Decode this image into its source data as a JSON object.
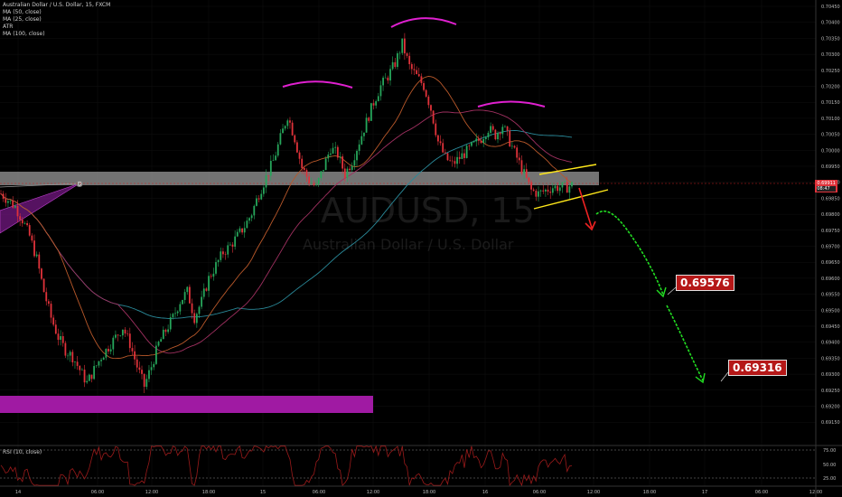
{
  "chart_data": {
    "type": "candlestick",
    "symbol_title": "Australian Dollar / U.S. Dollar, 15, FXCM",
    "watermark_symbol": "AUDUSD, 15",
    "watermark_name": "Australian Dollar / U.S. Dollar",
    "indicators": [
      "MA (50, close)",
      "MA (25, close)",
      "ATR",
      "MA (100, close)"
    ],
    "rsi_label": "RSI (10, close)",
    "y_ticks": [
      "0.70450",
      "0.70400",
      "0.70350",
      "0.70300",
      "0.70250",
      "0.70200",
      "0.70150",
      "0.70100",
      "0.70050",
      "0.70000",
      "0.69950",
      "0.69900",
      "0.69850",
      "0.69800",
      "0.69750",
      "0.69700",
      "0.69650",
      "0.69600",
      "0.69550",
      "0.69500",
      "0.69450",
      "0.69400",
      "0.69350",
      "0.69300",
      "0.69250",
      "0.69200",
      "0.69150"
    ],
    "rsi_ticks": [
      "75.00",
      "50.00",
      "25.00"
    ],
    "x_ticks": [
      "14",
      "06:00",
      "12:00",
      "18:00",
      "15",
      "06:00",
      "12:00",
      "18:00",
      "16",
      "06:00",
      "12:00",
      "18:00",
      "17",
      "06:00",
      "12:00"
    ],
    "ylim": [
      0.6913,
      0.7046
    ],
    "current_price": "0.69911",
    "countdown": "08:47",
    "marker": "D",
    "targets": [
      "0.69576",
      "0.69316"
    ],
    "close_path": [
      [
        0,
        0.6988
      ],
      [
        3,
        0.6986
      ],
      [
        6,
        0.6984
      ],
      [
        9,
        0.698
      ],
      [
        12,
        0.6975
      ],
      [
        15,
        0.6968
      ],
      [
        18,
        0.6958
      ],
      [
        21,
        0.695
      ],
      [
        24,
        0.6944
      ],
      [
        27,
        0.694
      ],
      [
        30,
        0.6938
      ],
      [
        33,
        0.6934
      ],
      [
        36,
        0.693
      ],
      [
        39,
        0.6934
      ],
      [
        42,
        0.6938
      ],
      [
        45,
        0.6941
      ],
      [
        48,
        0.6944
      ],
      [
        51,
        0.6947
      ],
      [
        54,
        0.6942
      ],
      [
        57,
        0.6935
      ],
      [
        60,
        0.6929
      ],
      [
        63,
        0.6935
      ],
      [
        66,
        0.6942
      ],
      [
        69,
        0.6946
      ],
      [
        72,
        0.695
      ],
      [
        75,
        0.6955
      ],
      [
        78,
        0.6958
      ],
      [
        81,
        0.695
      ],
      [
        84,
        0.6955
      ],
      [
        87,
        0.6962
      ],
      [
        90,
        0.6966
      ],
      [
        93,
        0.697
      ],
      [
        96,
        0.6972
      ],
      [
        99,
        0.6975
      ],
      [
        102,
        0.6978
      ],
      [
        105,
        0.6982
      ],
      [
        108,
        0.6988
      ],
      [
        111,
        0.6993
      ],
      [
        114,
        0.6998
      ],
      [
        117,
        0.7005
      ],
      [
        120,
        0.7012
      ],
      [
        123,
        0.7005
      ],
      [
        126,
        0.6996
      ],
      [
        129,
        0.6992
      ],
      [
        132,
        0.699
      ],
      [
        135,
        0.6996
      ],
      [
        138,
        0.7002
      ],
      [
        141,
        0.7
      ],
      [
        144,
        0.6994
      ],
      [
        147,
        0.6998
      ],
      [
        150,
        0.7004
      ],
      [
        153,
        0.701
      ],
      [
        156,
        0.7016
      ],
      [
        159,
        0.7021
      ],
      [
        162,
        0.7024
      ],
      [
        165,
        0.7028
      ],
      [
        168,
        0.7034
      ],
      [
        171,
        0.7027
      ],
      [
        174,
        0.7024
      ],
      [
        177,
        0.7021
      ],
      [
        180,
        0.7014
      ],
      [
        183,
        0.7004
      ],
      [
        186,
        0.6999
      ],
      [
        189,
        0.6997
      ],
      [
        192,
        0.6999
      ],
      [
        195,
        0.7001
      ],
      [
        198,
        0.7003
      ],
      [
        201,
        0.7005
      ],
      [
        204,
        0.7008
      ],
      [
        207,
        0.7006
      ],
      [
        210,
        0.7009
      ],
      [
        213,
        0.7004
      ],
      [
        216,
        0.6999
      ],
      [
        219,
        0.6994
      ],
      [
        222,
        0.6989
      ],
      [
        225,
        0.6988
      ],
      [
        228,
        0.6989
      ],
      [
        231,
        0.699
      ],
      [
        234,
        0.699
      ],
      [
        237,
        0.699
      ],
      [
        240,
        0.6991
      ]
    ]
  }
}
